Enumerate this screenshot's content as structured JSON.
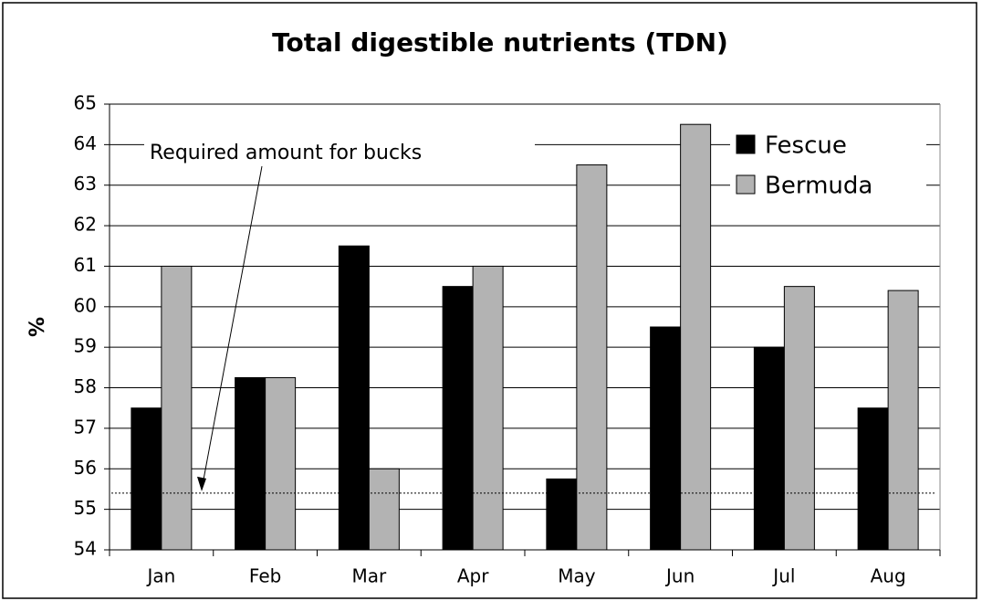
{
  "chart_data": {
    "type": "bar",
    "title": "Total digestible nutrients (TDN)",
    "y_label": "%",
    "categories": [
      "Jan",
      "Feb",
      "Mar",
      "Apr",
      "May",
      "Jun",
      "Jul",
      "Aug"
    ],
    "series": [
      {
        "name": "Fescue",
        "color": "#000000",
        "values": [
          57.5,
          58.25,
          61.5,
          60.5,
          55.75,
          59.5,
          59,
          57.5
        ]
      },
      {
        "name": "Bermuda",
        "color": "#b3b3b3",
        "values": [
          61,
          58.25,
          56,
          61,
          63.5,
          64.5,
          60.5,
          60.4
        ]
      }
    ],
    "ylim": [
      54,
      65
    ],
    "yticks": [
      54,
      55,
      56,
      57,
      58,
      59,
      60,
      61,
      62,
      63,
      64,
      65
    ],
    "grid": true,
    "legend": "upper right",
    "reference_line": {
      "value": 55.4,
      "label": "Required amount for bucks"
    }
  }
}
